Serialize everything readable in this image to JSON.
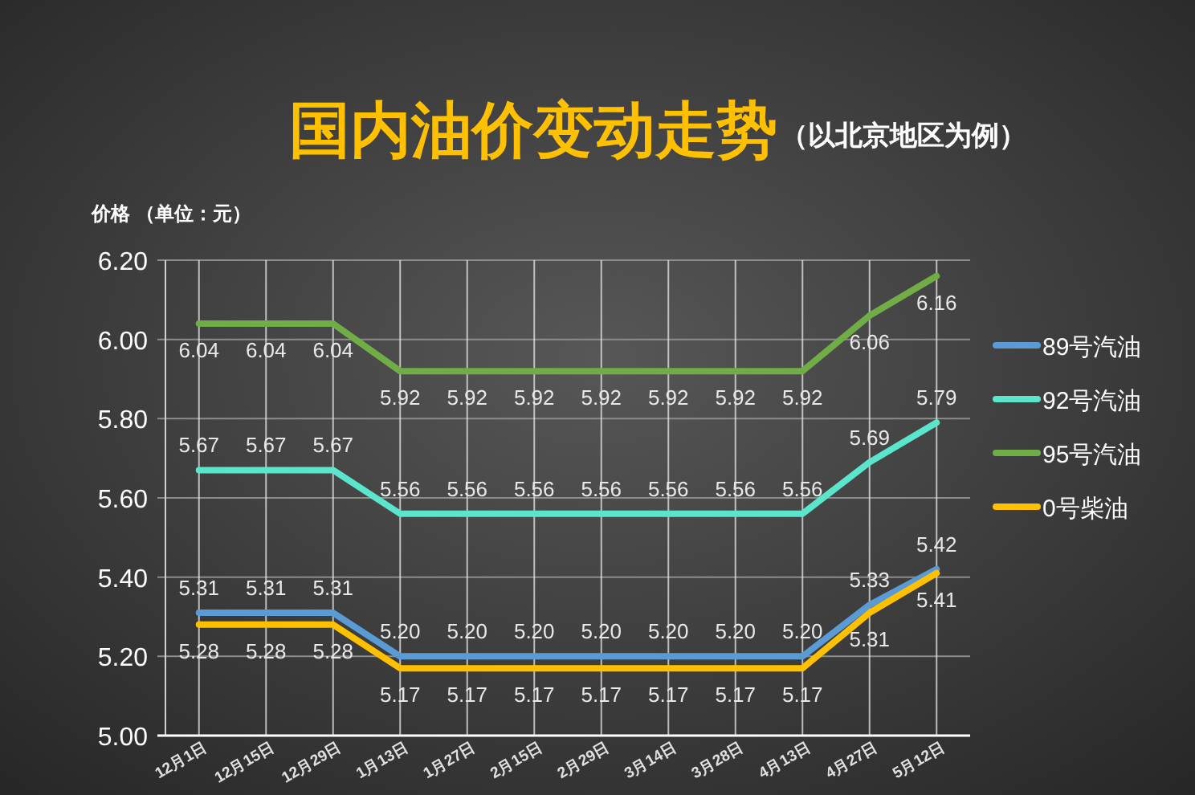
{
  "chart_data": {
    "type": "line",
    "title": "国内油价变动走势",
    "subtitle": "（以北京地区为例）",
    "ylabel": "价格 （单位：元）",
    "categories": [
      "12月1日",
      "12月15日",
      "12月29日",
      "1月13日",
      "1月27日",
      "2月15日",
      "2月29日",
      "3月14日",
      "3月28日",
      "4月13日",
      "4月27日",
      "5月12日"
    ],
    "series": [
      {
        "name": "89号汽油",
        "color": "#5b9bd5",
        "values": [
          5.31,
          5.31,
          5.31,
          5.2,
          5.2,
          5.2,
          5.2,
          5.2,
          5.2,
          5.2,
          5.33,
          5.42
        ],
        "value_labels": [
          "5.31",
          "5.31",
          "5.31",
          "5.20",
          "5.20",
          "5.20",
          "5.20",
          "5.20",
          "5.20",
          "5.20",
          "5.33",
          "5.42"
        ]
      },
      {
        "name": "92号汽油",
        "color": "#5be5cd",
        "values": [
          5.67,
          5.67,
          5.67,
          5.56,
          5.56,
          5.56,
          5.56,
          5.56,
          5.56,
          5.56,
          5.69,
          5.79
        ],
        "value_labels": [
          "5.67",
          "5.67",
          "5.67",
          "5.56",
          "5.56",
          "5.56",
          "5.56",
          "5.56",
          "5.56",
          "5.56",
          "5.69",
          "5.79"
        ]
      },
      {
        "name": "95号汽油",
        "color": "#70ad47",
        "values": [
          6.04,
          6.04,
          6.04,
          5.92,
          5.92,
          5.92,
          5.92,
          5.92,
          5.92,
          5.92,
          6.06,
          6.16
        ],
        "value_labels": [
          "6.04",
          "6.04",
          "6.04",
          "5.92",
          "5.92",
          "5.92",
          "5.92",
          "5.92",
          "5.92",
          "5.92",
          "6.06",
          "6.16"
        ]
      },
      {
        "name": "0号柴油",
        "color": "#ffc000",
        "values": [
          5.28,
          5.28,
          5.28,
          5.17,
          5.17,
          5.17,
          5.17,
          5.17,
          5.17,
          5.17,
          5.31,
          5.41
        ],
        "value_labels": [
          "5.28",
          "5.28",
          "5.28",
          "5.17",
          "5.17",
          "5.17",
          "5.17",
          "5.17",
          "5.17",
          "5.17",
          "5.31",
          "5.41"
        ]
      }
    ],
    "ylim": [
      5.0,
      6.2
    ],
    "yticks": [
      {
        "value": 5.0,
        "label": "5.00"
      },
      {
        "value": 5.2,
        "label": "5.20"
      },
      {
        "value": 5.4,
        "label": "5.40"
      },
      {
        "value": 5.6,
        "label": "5.60"
      },
      {
        "value": 5.8,
        "label": "5.80"
      },
      {
        "value": 6.0,
        "label": "6.00"
      },
      {
        "value": 6.2,
        "label": "6.20"
      }
    ],
    "grid": true,
    "legend": "right",
    "marker": "none",
    "line_style": "solid"
  }
}
